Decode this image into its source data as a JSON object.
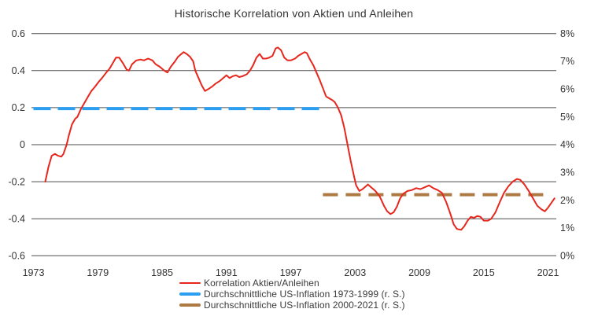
{
  "chart_data": {
    "type": "line",
    "title": "Historische Korrelation von Aktien und Anleihen",
    "grid": true,
    "legend_position": "bottom",
    "colors": {
      "grid": "#4d4d4d",
      "text": "#333333",
      "legend_text": "#3a3a3a"
    },
    "left_axis": {
      "ticks": [
        "0.6",
        "0.4",
        "0.2",
        "0",
        "-0.2",
        "-0.4",
        "-0.6"
      ],
      "min": -0.6,
      "max": 0.6
    },
    "right_axis": {
      "ticks": [
        "8%",
        "7%",
        "6%",
        "5%",
        "4%",
        "3%",
        "2%",
        "1%",
        "0%"
      ],
      "min": 0,
      "max": 8,
      "unit": "%"
    },
    "x_axis": {
      "ticks": [
        "1973",
        "1979",
        "1985",
        "1991",
        "1997",
        "2003",
        "2009",
        "2015",
        "2021"
      ],
      "min": 1973,
      "max": 2022
    },
    "series": [
      {
        "id": "korrelation",
        "name": "Korrelation Aktien/Anleihen",
        "color": "#e7271d",
        "axis": "left",
        "style": "solid",
        "points": [
          [
            1974.1,
            -0.2
          ],
          [
            1974.4,
            -0.12
          ],
          [
            1974.7,
            -0.06
          ],
          [
            1975.0,
            -0.05
          ],
          [
            1975.3,
            -0.06
          ],
          [
            1975.6,
            -0.065
          ],
          [
            1975.8,
            -0.05
          ],
          [
            1976.1,
            0.0
          ],
          [
            1976.3,
            0.05
          ],
          [
            1976.6,
            0.11
          ],
          [
            1976.9,
            0.14
          ],
          [
            1977.1,
            0.15
          ],
          [
            1977.4,
            0.19
          ],
          [
            1977.7,
            0.22
          ],
          [
            1978.0,
            0.25
          ],
          [
            1978.4,
            0.29
          ],
          [
            1978.7,
            0.31
          ],
          [
            1979.1,
            0.34
          ],
          [
            1979.4,
            0.36
          ],
          [
            1979.8,
            0.39
          ],
          [
            1980.1,
            0.41
          ],
          [
            1980.4,
            0.44
          ],
          [
            1980.7,
            0.47
          ],
          [
            1981.0,
            0.47
          ],
          [
            1981.4,
            0.435
          ],
          [
            1981.7,
            0.405
          ],
          [
            1981.9,
            0.4
          ],
          [
            1982.2,
            0.435
          ],
          [
            1982.6,
            0.455
          ],
          [
            1983.0,
            0.46
          ],
          [
            1983.3,
            0.455
          ],
          [
            1983.7,
            0.465
          ],
          [
            1984.1,
            0.455
          ],
          [
            1984.4,
            0.435
          ],
          [
            1984.8,
            0.42
          ],
          [
            1985.2,
            0.4
          ],
          [
            1985.5,
            0.39
          ],
          [
            1985.8,
            0.42
          ],
          [
            1986.2,
            0.45
          ],
          [
            1986.5,
            0.475
          ],
          [
            1986.8,
            0.49
          ],
          [
            1987.0,
            0.5
          ],
          [
            1987.3,
            0.49
          ],
          [
            1987.6,
            0.475
          ],
          [
            1987.9,
            0.45
          ],
          [
            1988.1,
            0.4
          ],
          [
            1988.4,
            0.36
          ],
          [
            1988.7,
            0.32
          ],
          [
            1989.0,
            0.29
          ],
          [
            1989.3,
            0.3
          ],
          [
            1989.7,
            0.315
          ],
          [
            1990.0,
            0.33
          ],
          [
            1990.4,
            0.345
          ],
          [
            1990.7,
            0.36
          ],
          [
            1991.0,
            0.375
          ],
          [
            1991.3,
            0.36
          ],
          [
            1991.6,
            0.37
          ],
          [
            1991.9,
            0.375
          ],
          [
            1992.2,
            0.365
          ],
          [
            1992.5,
            0.37
          ],
          [
            1992.9,
            0.38
          ],
          [
            1993.2,
            0.4
          ],
          [
            1993.5,
            0.43
          ],
          [
            1993.8,
            0.47
          ],
          [
            1994.1,
            0.49
          ],
          [
            1994.4,
            0.465
          ],
          [
            1994.7,
            0.465
          ],
          [
            1995.0,
            0.47
          ],
          [
            1995.3,
            0.48
          ],
          [
            1995.6,
            0.52
          ],
          [
            1995.8,
            0.525
          ],
          [
            1996.1,
            0.51
          ],
          [
            1996.4,
            0.47
          ],
          [
            1996.7,
            0.455
          ],
          [
            1997.0,
            0.455
          ],
          [
            1997.4,
            0.465
          ],
          [
            1997.7,
            0.48
          ],
          [
            1998.0,
            0.49
          ],
          [
            1998.3,
            0.5
          ],
          [
            1998.5,
            0.495
          ],
          [
            1998.8,
            0.46
          ],
          [
            1999.1,
            0.43
          ],
          [
            1999.4,
            0.39
          ],
          [
            1999.7,
            0.35
          ],
          [
            2000.0,
            0.305
          ],
          [
            2000.3,
            0.26
          ],
          [
            2000.6,
            0.25
          ],
          [
            2000.9,
            0.24
          ],
          [
            2001.1,
            0.23
          ],
          [
            2001.4,
            0.2
          ],
          [
            2001.7,
            0.16
          ],
          [
            2002.0,
            0.09
          ],
          [
            2002.3,
            0.0
          ],
          [
            2002.6,
            -0.09
          ],
          [
            2002.9,
            -0.17
          ],
          [
            2003.1,
            -0.22
          ],
          [
            2003.4,
            -0.25
          ],
          [
            2003.7,
            -0.24
          ],
          [
            2004.0,
            -0.225
          ],
          [
            2004.2,
            -0.215
          ],
          [
            2004.5,
            -0.23
          ],
          [
            2004.9,
            -0.25
          ],
          [
            2005.3,
            -0.28
          ],
          [
            2005.7,
            -0.33
          ],
          [
            2006.0,
            -0.36
          ],
          [
            2006.3,
            -0.375
          ],
          [
            2006.6,
            -0.365
          ],
          [
            2006.9,
            -0.335
          ],
          [
            2007.2,
            -0.29
          ],
          [
            2007.5,
            -0.265
          ],
          [
            2007.9,
            -0.25
          ],
          [
            2008.3,
            -0.245
          ],
          [
            2008.7,
            -0.235
          ],
          [
            2009.1,
            -0.24
          ],
          [
            2009.5,
            -0.23
          ],
          [
            2009.9,
            -0.22
          ],
          [
            2010.3,
            -0.235
          ],
          [
            2010.7,
            -0.245
          ],
          [
            2011.1,
            -0.26
          ],
          [
            2011.5,
            -0.31
          ],
          [
            2011.9,
            -0.375
          ],
          [
            2012.2,
            -0.43
          ],
          [
            2012.5,
            -0.455
          ],
          [
            2012.9,
            -0.46
          ],
          [
            2013.2,
            -0.44
          ],
          [
            2013.5,
            -0.41
          ],
          [
            2013.8,
            -0.39
          ],
          [
            2014.1,
            -0.395
          ],
          [
            2014.4,
            -0.385
          ],
          [
            2014.7,
            -0.39
          ],
          [
            2015.0,
            -0.41
          ],
          [
            2015.4,
            -0.41
          ],
          [
            2015.7,
            -0.4
          ],
          [
            2016.1,
            -0.365
          ],
          [
            2016.5,
            -0.31
          ],
          [
            2016.9,
            -0.26
          ],
          [
            2017.3,
            -0.225
          ],
          [
            2017.7,
            -0.2
          ],
          [
            2018.1,
            -0.185
          ],
          [
            2018.4,
            -0.19
          ],
          [
            2018.8,
            -0.215
          ],
          [
            2019.2,
            -0.25
          ],
          [
            2019.6,
            -0.29
          ],
          [
            2020.0,
            -0.33
          ],
          [
            2020.4,
            -0.35
          ],
          [
            2020.7,
            -0.36
          ],
          [
            2021.0,
            -0.34
          ],
          [
            2021.3,
            -0.315
          ],
          [
            2021.6,
            -0.29
          ]
        ]
      },
      {
        "id": "inflation-1973-1999",
        "name": "Durchschnittliche US-Inflation 1973-1999 (r. S.)",
        "color": "#2d9ff0",
        "axis": "right",
        "style": "dashed",
        "value": 5.3,
        "x_start": 1973.0,
        "x_end": 2000.2,
        "dash": "22 9"
      },
      {
        "id": "inflation-2000-2021",
        "name": "Durchschnittliche US-Inflation 2000-2021 (r. S.)",
        "color": "#ad7a43",
        "axis": "right",
        "style": "dashed",
        "value": 2.2,
        "x_start": 2000.0,
        "x_end": 2021.2,
        "dash": "19 10"
      }
    ]
  }
}
